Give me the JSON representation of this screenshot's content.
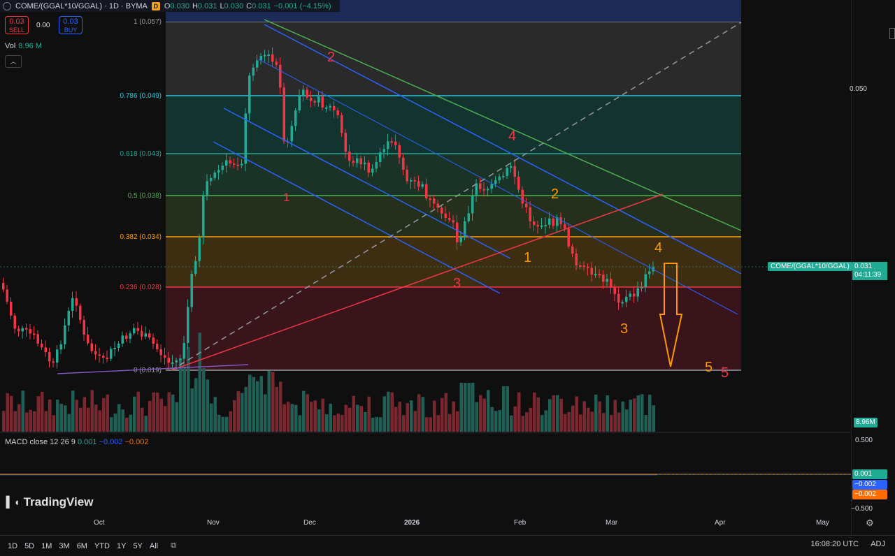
{
  "header": {
    "symbol": "COME/(GGAL*10/GGAL) · 1D · BYMA",
    "badge": "D",
    "o_label": "O",
    "o": "0.030",
    "h_label": "H",
    "h": "0.031",
    "l_label": "L",
    "l": "0.030",
    "c_label": "C",
    "c": "0.031",
    "change": "−0.001 (−4.15%)"
  },
  "trade": {
    "sell_price": "0.03",
    "sell_label": "SELL",
    "spread": "0.00",
    "buy_price": "0.03",
    "buy_label": "BUY"
  },
  "volume": {
    "label": "Vol",
    "value": "8.96 M",
    "tag": "8.96M"
  },
  "macd": {
    "label": "MACD close 12 26 9",
    "hist": "0.001",
    "macd": "−0.002",
    "signal": "−0.002",
    "axis_top": "0.500",
    "axis_bottom": "−0.500",
    "tag_hist": "0.001",
    "tag_macd": "−0.002",
    "tag_signal": "−0.002"
  },
  "price_axis": {
    "level_050": "0.050"
  },
  "current": {
    "symbol_tag": "COME/(GGAL*10/GGAL)",
    "price": "0.031",
    "countdown": "04:11:39"
  },
  "fib_levels": [
    {
      "label": "1 (0.057)",
      "color": "#9598a1"
    },
    {
      "label": "0.786 (0.049)",
      "color": "#26c6da"
    },
    {
      "label": "0.618 (0.043)",
      "color": "#26a69a"
    },
    {
      "label": "0.5 (0.038)",
      "color": "#4caf50"
    },
    {
      "label": "0.382 (0.034)",
      "color": "#ff9800"
    },
    {
      "label": "0.236 (0.028)",
      "color": "#f23645"
    },
    {
      "label": "0 (0.019)",
      "color": "#9598a1"
    }
  ],
  "wave_labels_red": [
    "1",
    "2",
    "3",
    "4",
    "5"
  ],
  "wave_labels_orange": [
    "1",
    "2",
    "3",
    "4",
    "5"
  ],
  "x_axis": [
    "Oct",
    "Nov",
    "Dec",
    "2026",
    "Feb",
    "Mar",
    "Apr",
    "May"
  ],
  "ranges": [
    "1D",
    "5D",
    "1M",
    "3M",
    "6M",
    "YTD",
    "1Y",
    "5Y",
    "All"
  ],
  "clock": "16:08:20 UTC",
  "adj": "ADJ",
  "logo": "TradingView",
  "colors": {
    "up": "#22ab94",
    "down": "#f23645",
    "accent": "#2962ff"
  }
}
